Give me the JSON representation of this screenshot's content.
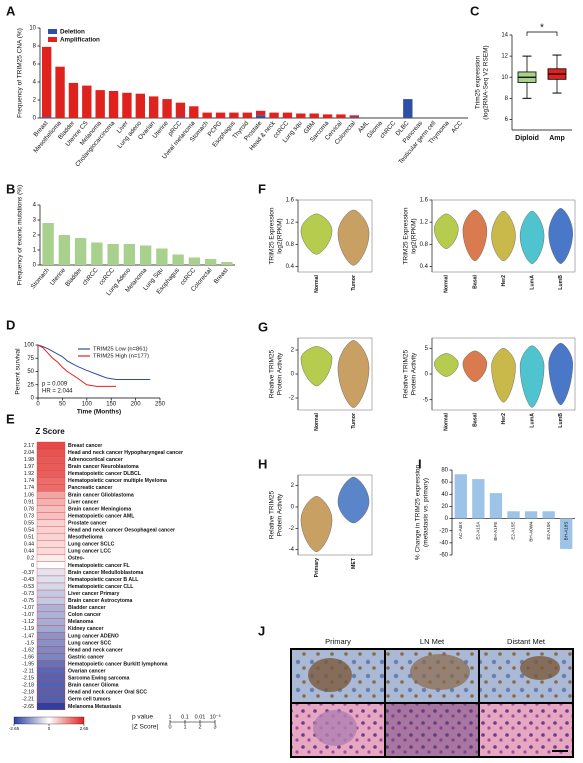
{
  "chart_data": [
    {
      "type": "bar",
      "panel": "A",
      "stacked": true,
      "ylabel": "Frequency of TRIM25 CNA (%)",
      "categories": [
        "Breast",
        "Mesothelioma",
        "Bladder",
        "Uterine CS",
        "Melanoma",
        "Cholangiocarcinoma",
        "Liver",
        "Lung adeno",
        "Ovarian",
        "Uterine",
        "pRCC",
        "Uveal melanoma",
        "Stomach",
        "PCPG",
        "Esophagus",
        "Thyroid",
        "Prostate",
        "Head & neck",
        "ccRCC",
        "Lung squ",
        "GBM",
        "Sarcoma",
        "Cervical",
        "Colorectal",
        "AML",
        "Glioma",
        "chRCC",
        "DLBC",
        "Pancreas",
        "Testicular germ cell",
        "Thymoma",
        "ACC"
      ],
      "series": [
        {
          "name": "Deletion",
          "color": "#2e4fa3",
          "values": [
            0.1,
            0,
            0,
            0,
            0,
            0,
            0,
            0,
            0,
            0,
            0.1,
            0,
            0,
            0,
            0,
            0,
            0.3,
            0,
            0,
            0,
            0,
            0,
            0,
            0.1,
            0,
            0,
            0,
            2.1,
            0,
            0,
            0,
            0
          ]
        },
        {
          "name": "Amplification",
          "color": "#e0221f",
          "values": [
            7.8,
            5.7,
            3.9,
            3.6,
            3.1,
            3.0,
            2.8,
            2.7,
            2.4,
            2.1,
            1.6,
            1.3,
            0.6,
            0.6,
            0.6,
            0.6,
            0.5,
            0.6,
            0.6,
            0.5,
            0.5,
            0.4,
            0.4,
            0.2,
            0,
            0,
            0,
            0,
            0,
            0,
            0,
            0
          ]
        }
      ],
      "ylim": [
        0,
        10
      ],
      "yticks": [
        0,
        2,
        4,
        6,
        8,
        10
      ]
    },
    {
      "type": "box",
      "panel": "C",
      "ylabel": [
        "Trim25 expression",
        "(log2RNA-Seq V2 RSEM)"
      ],
      "annotation": "*",
      "categories": [
        "Diploid",
        "Amp"
      ],
      "colors": [
        "#a9d18e",
        "#e0221f"
      ],
      "whisker_low": [
        8.0,
        8.5
      ],
      "q1": [
        9.5,
        9.8
      ],
      "median": [
        10.0,
        10.3
      ],
      "q3": [
        10.5,
        10.8
      ],
      "whisker_high": [
        12.0,
        12.1
      ],
      "ylim": [
        5,
        14
      ],
      "yticks": [
        6,
        8,
        10,
        12,
        14
      ]
    },
    {
      "type": "bar",
      "panel": "B",
      "ylabel": "Frequency of exonic mutations (%)",
      "color": "#a9d18e",
      "categories": [
        "Stomach",
        "Uterine",
        "Bladder",
        "chRCC",
        "ccRCC",
        "Lung Adeno",
        "Melanoma",
        "Lung Squ",
        "Esophagus",
        "ccRCC",
        "Colorectal",
        "Breast"
      ],
      "values": [
        2.8,
        2.0,
        1.8,
        1.5,
        1.4,
        1.4,
        1.3,
        1.1,
        0.7,
        0.5,
        0.4,
        0.2
      ],
      "ylim": [
        0,
        4
      ],
      "yticks": [
        0,
        1,
        2,
        3,
        4
      ]
    },
    {
      "type": "line",
      "panel": "D",
      "ylabel": "Percent survival",
      "xlabel": "Time (Months)",
      "annotations": [
        "p = 0.009",
        "HR = 2.044"
      ],
      "series": [
        {
          "name": "TRIM25 Low (n=861)",
          "color": "#2e4fa3",
          "x": [
            0,
            10,
            20,
            30,
            40,
            50,
            60,
            80,
            100,
            120,
            140,
            160,
            180,
            200,
            230
          ],
          "values": [
            100,
            97,
            93,
            88,
            83,
            78,
            70,
            60,
            52,
            45,
            38,
            35,
            35,
            35,
            35
          ]
        },
        {
          "name": "TRIM25 High (n=177)",
          "color": "#e0221f",
          "x": [
            0,
            10,
            20,
            30,
            40,
            50,
            60,
            80,
            100,
            120,
            140,
            160
          ],
          "values": [
            100,
            95,
            85,
            75,
            68,
            58,
            50,
            38,
            25,
            22,
            22,
            22
          ]
        }
      ],
      "xlim": [
        0,
        250
      ],
      "xticks": [
        0,
        50,
        100,
        150,
        200,
        250
      ],
      "ylim": [
        0,
        100
      ],
      "yticks": [
        0,
        25,
        50,
        75,
        100
      ]
    },
    {
      "type": "heatmap",
      "panel": "E",
      "title": "Z Score",
      "categories": [
        "Breast cancer",
        "Head and neck cancer Hypopharyngeal cancer",
        "Adrenocortical cancer",
        "Brain cancer Neuroblastoma",
        "Hematopoietic cancer DLBCL",
        "Hematopoietic cancer multiple Myeloma",
        "Pancreatic cancer",
        "Brain cancer Glioblastoma",
        "Liver cancer",
        "Brain cancer Meningioma",
        "Hematopoietic cancer AML",
        "Prostate cancer",
        "Head and neck cancer Oesophageal cancer",
        "Mesothelioma",
        "Lung cancer SCLC",
        "Lung cancer LCC",
        "Osteo-",
        "Hematopoietic cancer FL",
        "Brain cancer Medulloblastoma",
        "Hematopoietic cancer B ALL",
        "Hematopoietic cancer CLL",
        "Liver cancer Primary",
        "Brain cancer Astrocytoma",
        "Bladder cancer",
        "Colon cancer",
        "Melanoma",
        "Kidney cancer",
        "Lung cancer ADENO",
        "Lung cancer SCC",
        "Head and neck cancer",
        "Gastric cancer",
        "Hematopoietic cancer Burkitt lymphoma",
        "Ovarian cancer",
        "Sarcoma Ewing sarcoma",
        "Brain cancer Glioma",
        "Head and neck cancer Oral SCC",
        "Germ cell tumors",
        "Melanoma Metastasis"
      ],
      "values": [
        2.17,
        2.04,
        1.98,
        1.97,
        1.92,
        1.74,
        1.74,
        1.06,
        0.91,
        0.78,
        0.73,
        0.55,
        0.54,
        0.51,
        0.44,
        0.44,
        0.2,
        0,
        -0.37,
        -0.43,
        -0.53,
        -0.73,
        -0.75,
        -1.07,
        -1.07,
        -1.12,
        -1.19,
        -1.47,
        -1.5,
        -1.62,
        -1.66,
        -1.95,
        -2.11,
        -2.15,
        -2.18,
        -2.18,
        -2.21,
        -2.65
      ],
      "colorbar_ticks": [
        -2.65,
        0,
        2.65
      ],
      "colors": [
        "#2e3f9e",
        "#ffffff",
        "#e0221f"
      ],
      "pvalue_title": "p value",
      "pvalue_ticks": [
        1,
        0.1,
        0.01,
        {
          "value": 0.001,
          "label": "10⁻³"
        }
      ],
      "zscore_title": "|Z Score|",
      "zscore_ticks": [
        0,
        1,
        2,
        3
      ]
    },
    {
      "type": "violin",
      "panel": "F",
      "ylabel": [
        "TRIM25 Expression",
        "log2(RPKM)"
      ],
      "categories": [
        "Normal",
        "Tumor"
      ],
      "colors": [
        "#b5cc4e",
        "#c9a063"
      ],
      "min": [
        0.62,
        0.42
      ],
      "peak": [
        1.05,
        1.0
      ],
      "max": [
        1.35,
        1.42
      ],
      "ylim": [
        0.3,
        1.6
      ],
      "yticks": [
        0.4,
        0.8,
        1.2,
        1.6
      ]
    },
    {
      "type": "violin",
      "ylabel": [
        "TRIM25 Expression",
        "log2(RPKM)"
      ],
      "categories": [
        "Normal",
        "Basal",
        "Her2",
        "LumA",
        "LumB"
      ],
      "colors": [
        "#b5cc4e",
        "#d97a4f",
        "#c9b94a",
        "#4fc4cf",
        "#4a78c8"
      ],
      "min": [
        0.72,
        0.5,
        0.5,
        0.45,
        0.45
      ],
      "peak": [
        1.08,
        1.05,
        0.95,
        0.95,
        1.0
      ],
      "max": [
        1.35,
        1.42,
        1.4,
        1.4,
        1.45
      ],
      "ylim": [
        0.3,
        1.6
      ],
      "yticks": [
        0.4,
        0.8,
        1.2,
        1.6
      ]
    },
    {
      "type": "violin",
      "panel": "G",
      "ylabel": [
        "Relative TRIM25",
        "Protein Activity"
      ],
      "categories": [
        "Normal",
        "Tumor"
      ],
      "colors": [
        "#b5cc4e",
        "#c9a063"
      ],
      "min": [
        -1.0,
        -2.8
      ],
      "peak": [
        1.3,
        0.5
      ],
      "max": [
        2.3,
        2.8
      ],
      "ylim": [
        -3,
        3
      ],
      "yticks": [
        -2,
        0,
        2
      ]
    },
    {
      "type": "violin",
      "ylabel": [
        "Relative TRIM25",
        "Protein Activity"
      ],
      "categories": [
        "Normal",
        "Basal",
        "Her2",
        "LumA",
        "LumB"
      ],
      "colors": [
        "#b5cc4e",
        "#d97a4f",
        "#c9b94a",
        "#4fc4cf",
        "#4a78c8"
      ],
      "min": [
        -0.5,
        -1.5,
        -5.5,
        -6.5,
        -6.0
      ],
      "peak": [
        2.0,
        2.0,
        1.5,
        1.5,
        2.0
      ],
      "max": [
        4.0,
        4.5,
        5.0,
        5.5,
        6.0
      ],
      "ylim": [
        -7,
        7
      ],
      "yticks": [
        -5,
        0,
        5
      ]
    },
    {
      "type": "violin",
      "panel": "H",
      "ylabel": [
        "Relative TRIM25",
        "Protein Activity"
      ],
      "categories": [
        "Primary",
        "MET"
      ],
      "colors": [
        "#c9a063",
        "#5a86c9"
      ],
      "min": [
        -4.2,
        -1.5
      ],
      "peak": [
        -1.2,
        0.5
      ],
      "max": [
        1.0,
        2.8
      ],
      "ylim": [
        -4.5,
        3
      ],
      "yticks": [
        -4,
        -2,
        0,
        2
      ]
    },
    {
      "type": "bar",
      "panel": "I",
      "ylabel": [
        "% Change in TRIM25 expression",
        "(metastasis vs. primary)"
      ],
      "color": "#9dc3e6",
      "categories": [
        "AC-A6IX",
        "E2-A15A",
        "BH-A1FE",
        "E2-A15E",
        "BH-A0W4",
        "E2-A15K",
        "BH-A18S"
      ],
      "values": [
        73,
        65,
        42,
        12,
        12,
        12,
        -50
      ],
      "ylim": [
        -60,
        80
      ],
      "yticks": [
        -60,
        -40,
        -20,
        0,
        20,
        40,
        60,
        80
      ]
    }
  ],
  "histology": {
    "panel": "J",
    "columns": [
      "Primary",
      "LN Met",
      "Distant Met"
    ]
  }
}
